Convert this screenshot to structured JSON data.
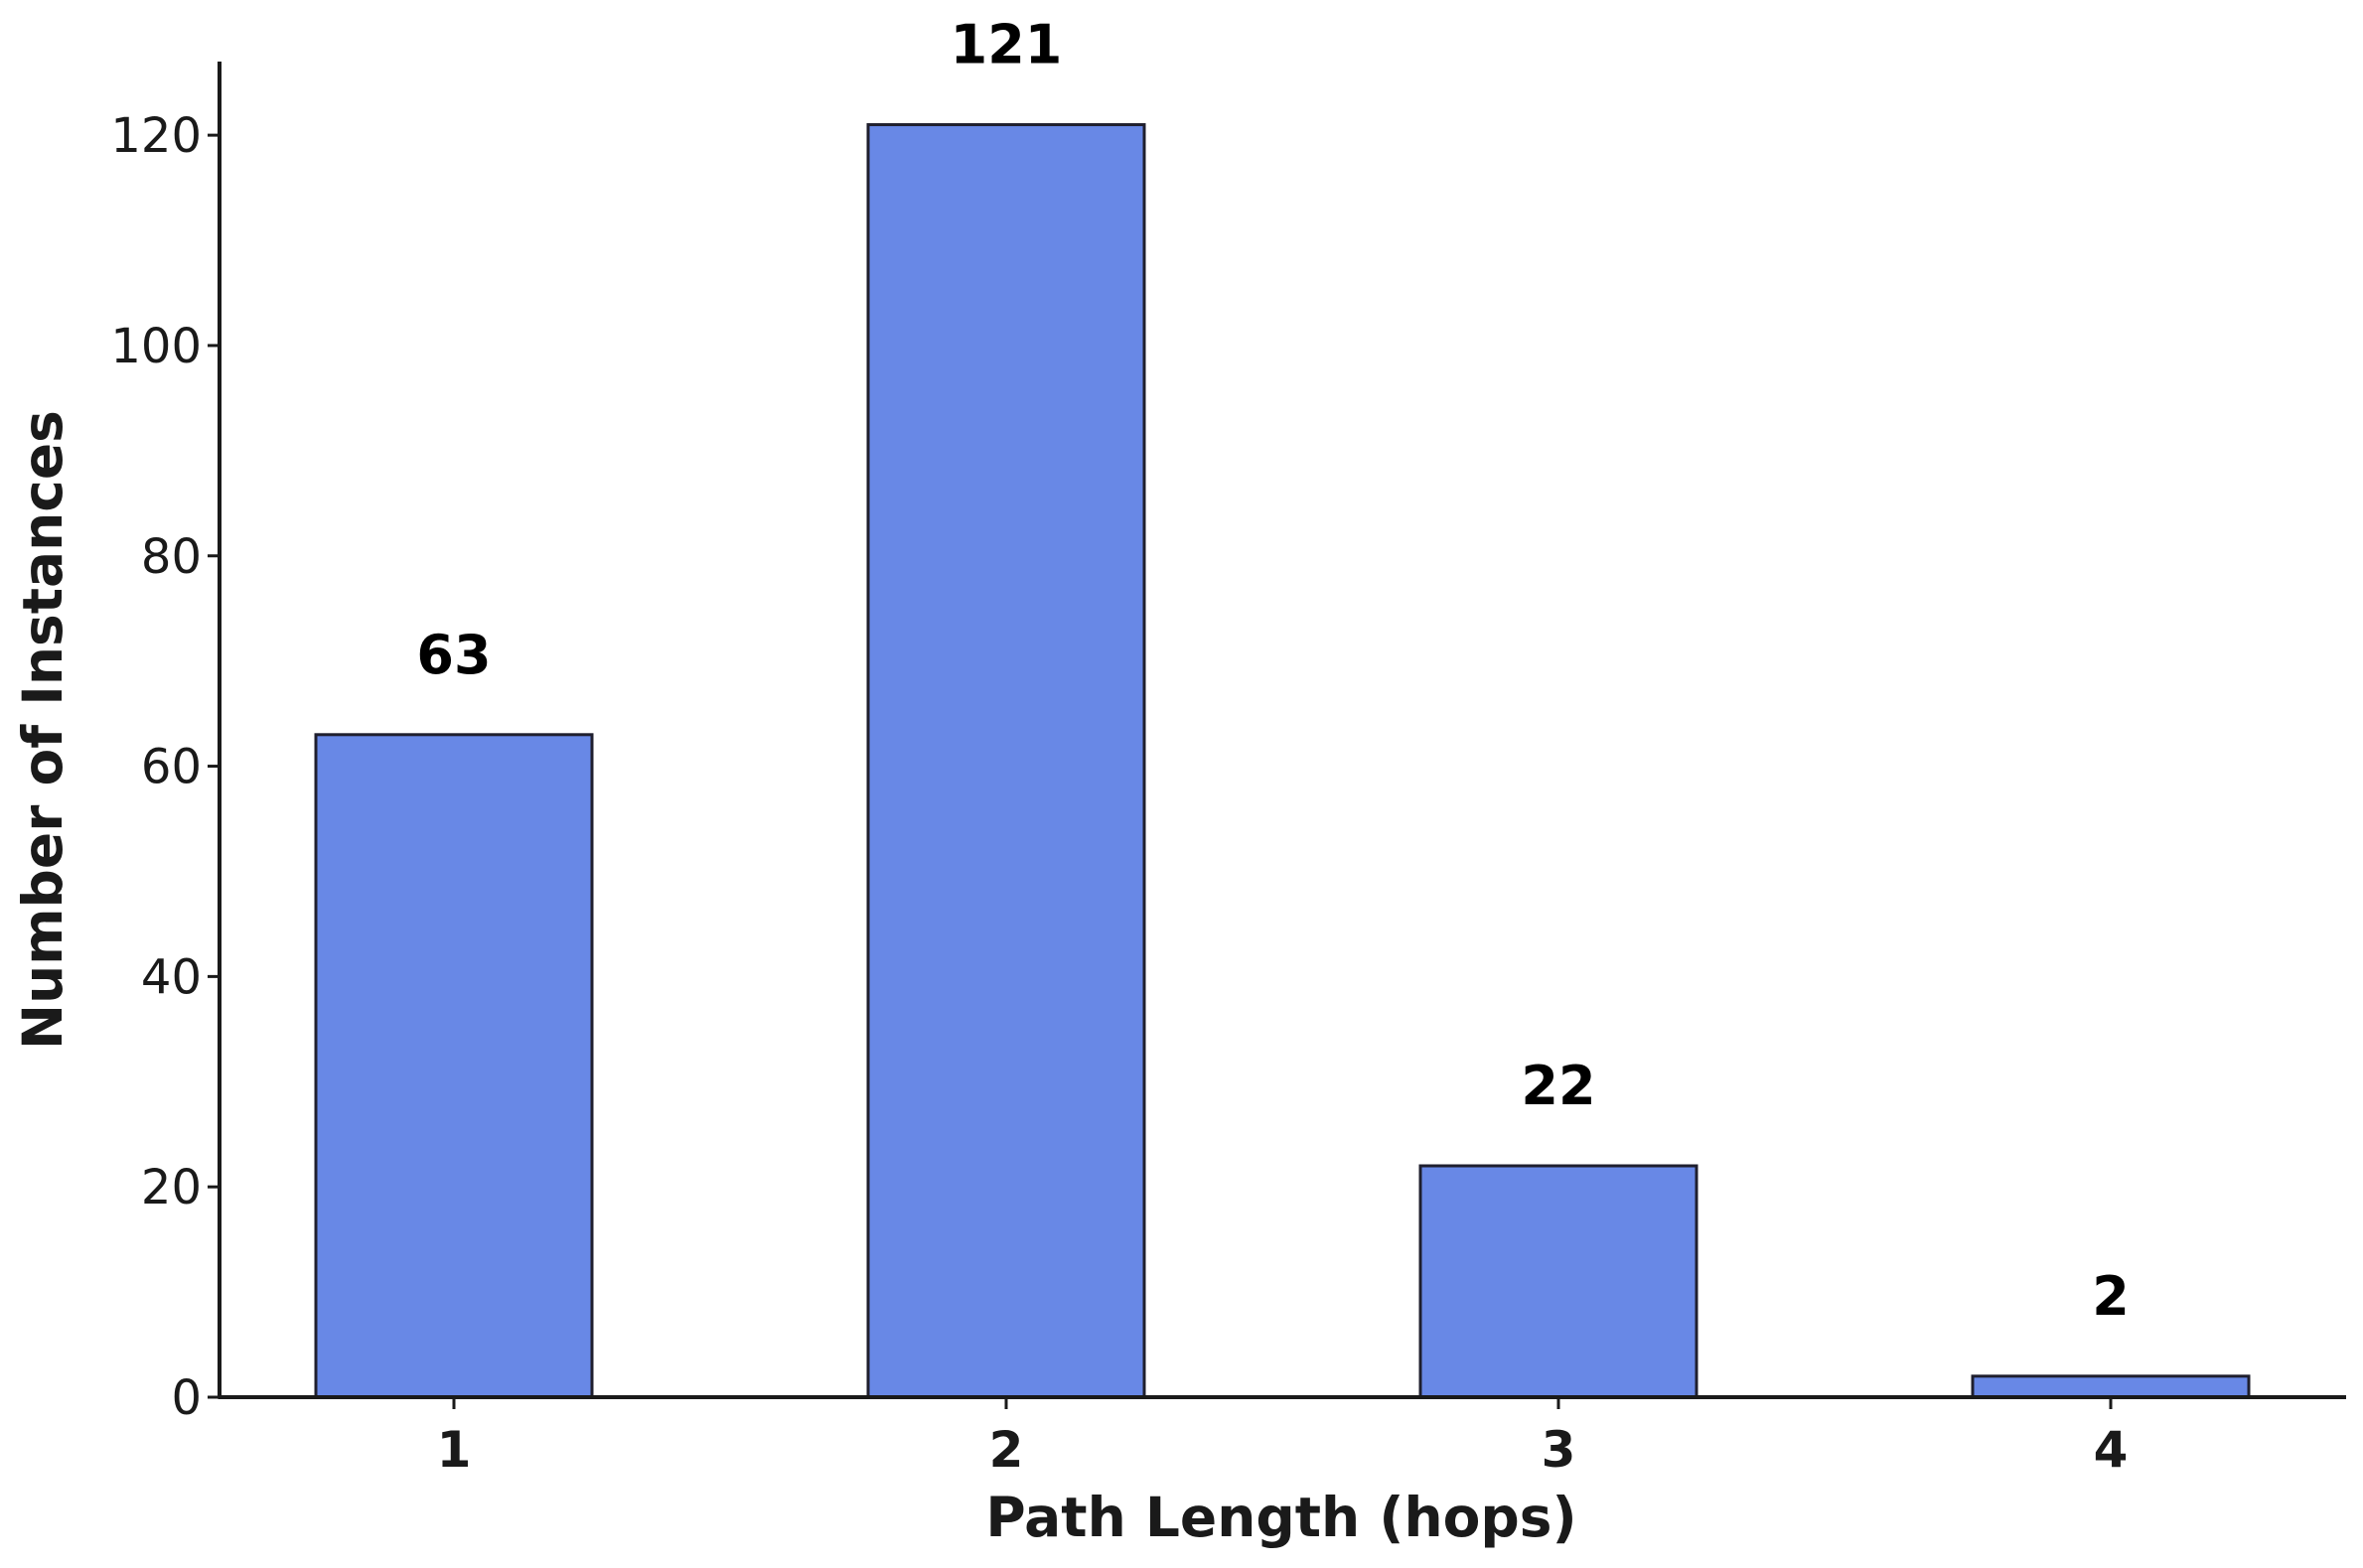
{
  "chart_data": {
    "type": "bar",
    "title": "",
    "xlabel": "Path Length (hops)",
    "ylabel": "Number of Instances",
    "categories": [
      "1",
      "2",
      "3",
      "4"
    ],
    "values": [
      63,
      121,
      22,
      2
    ],
    "data_labels": [
      "63",
      "121",
      "22",
      "2"
    ],
    "ylim": [
      0,
      127
    ],
    "yticks": [
      0,
      20,
      40,
      60,
      80,
      100,
      120
    ],
    "grid": false,
    "legend": "none",
    "bar_color": "#6888e6",
    "bar_edge_color": "#1f1f2e",
    "axis_color": "#1a1a1a"
  }
}
